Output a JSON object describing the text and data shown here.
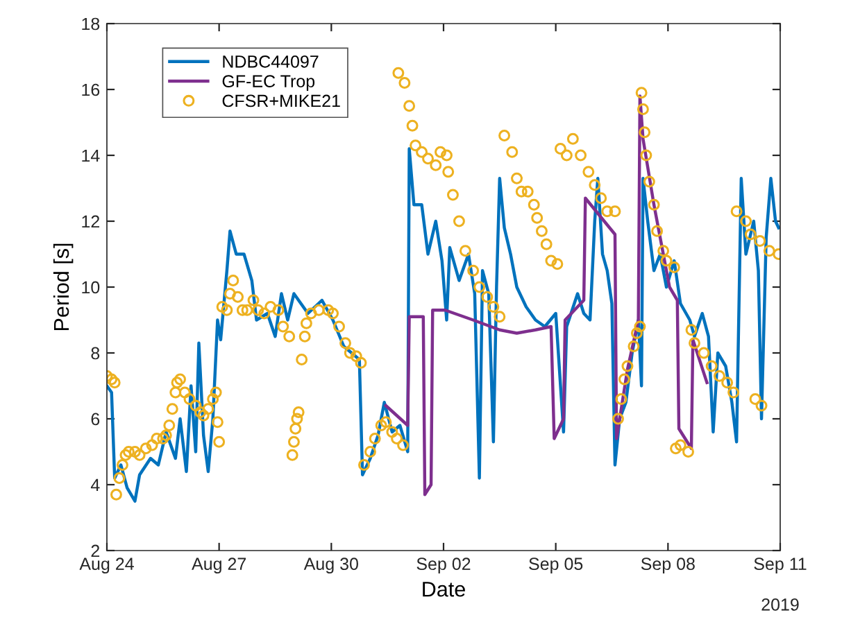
{
  "chart_data": {
    "type": "line",
    "xlabel": "Date",
    "ylabel": "Period [s]",
    "annotations": [
      "2019"
    ],
    "xlim": [
      "2019-08-24",
      "2019-09-11"
    ],
    "xticks": [
      {
        "value": "2019-08-24",
        "label": "Aug 24"
      },
      {
        "value": "2019-08-27",
        "label": "Aug 27"
      },
      {
        "value": "2019-08-30",
        "label": "Aug 30"
      },
      {
        "value": "2019-09-02",
        "label": "Sep 02"
      },
      {
        "value": "2019-09-05",
        "label": "Sep 05"
      },
      {
        "value": "2019-09-08",
        "label": "Sep 08"
      },
      {
        "value": "2019-09-11",
        "label": "Sep 11"
      }
    ],
    "ylim": [
      2,
      18
    ],
    "yticks": [
      2,
      4,
      6,
      8,
      10,
      12,
      14,
      16,
      18
    ],
    "grid": false,
    "legend": "top left",
    "series": [
      {
        "name": "NDBC44097",
        "color": "#0072bd",
        "line_style": "solid",
        "marker": "none",
        "x": [
          "2019-08-24T00:00",
          "2019-08-24T03:00",
          "2019-08-24T05:00",
          "2019-08-24T09:00",
          "2019-08-24T13:00",
          "2019-08-24T18:00",
          "2019-08-24T21:00",
          "2019-08-25T04:00",
          "2019-08-25T09:00",
          "2019-08-25T14:00",
          "2019-08-25T20:00",
          "2019-08-25T23:00",
          "2019-08-26T03:00",
          "2019-08-26T06:00",
          "2019-08-26T09:00",
          "2019-08-26T11:00",
          "2019-08-26T14:00",
          "2019-08-26T17:00",
          "2019-08-26T20:00",
          "2019-08-26T23:00",
          "2019-08-27T01:00",
          "2019-08-27T05:00",
          "2019-08-27T07:00",
          "2019-08-27T11:00",
          "2019-08-27T16:00",
          "2019-08-27T21:00",
          "2019-08-28T00:00",
          "2019-08-28T07:00",
          "2019-08-28T12:00",
          "2019-08-28T16:00",
          "2019-08-28T20:00",
          "2019-08-29T00:00",
          "2019-08-29T09:00",
          "2019-08-29T18:00",
          "2019-08-30T01:00",
          "2019-08-30T08:00",
          "2019-08-30T13:00",
          "2019-08-30T18:00",
          "2019-08-30T20:00",
          "2019-08-31T01:00",
          "2019-08-31T06:00",
          "2019-08-31T10:00",
          "2019-08-31T15:00",
          "2019-08-31T20:00",
          "2019-09-01T01:00",
          "2019-09-01T02:00",
          "2019-09-01T05:00",
          "2019-09-01T10:00",
          "2019-09-01T14:00",
          "2019-09-01T19:00",
          "2019-09-01T23:00",
          "2019-09-02T02:00",
          "2019-09-02T04:00",
          "2019-09-02T10:00",
          "2019-09-02T16:00",
          "2019-09-02T20:00",
          "2019-09-02T23:00",
          "2019-09-03T01:00",
          "2019-09-03T05:00",
          "2019-09-03T08:00",
          "2019-09-03T10:00",
          "2019-09-03T12:00",
          "2019-09-03T15:00",
          "2019-09-03T19:00",
          "2019-09-03T23:00",
          "2019-09-04T05:00",
          "2019-09-04T11:00",
          "2019-09-04T17:00",
          "2019-09-05T00:00",
          "2019-09-05T05:00",
          "2019-09-05T07:00",
          "2019-09-05T14:00",
          "2019-09-05T18:00",
          "2019-09-05T22:00",
          "2019-09-06T01:00",
          "2019-09-06T03:00",
          "2019-09-06T06:00",
          "2019-09-06T09:00",
          "2019-09-06T12:00",
          "2019-09-06T14:00",
          "2019-09-06T17:00",
          "2019-09-06T21:00",
          "2019-09-07T01:00",
          "2019-09-07T05:00",
          "2019-09-07T07:00",
          "2019-09-07T08:00",
          "2019-09-07T11:00",
          "2019-09-07T15:00",
          "2019-09-07T19:00",
          "2019-09-07T23:00",
          "2019-09-08T04:00",
          "2019-09-08T08:00",
          "2019-09-08T14:00",
          "2019-09-08T17:00",
          "2019-09-08T22:00",
          "2019-09-09T02:00",
          "2019-09-09T05:00",
          "2019-09-09T08:00",
          "2019-09-09T13:00",
          "2019-09-09T17:00",
          "2019-09-09T20:00",
          "2019-09-09T23:00",
          "2019-09-10T02:00",
          "2019-09-10T07:00",
          "2019-09-10T10:00",
          "2019-09-10T12:00",
          "2019-09-10T15:00",
          "2019-09-10T18:00",
          "2019-09-10T21:00",
          "2019-09-10T23:00"
        ],
        "values": [
          7.0,
          6.8,
          4.2,
          4.6,
          3.9,
          3.5,
          4.3,
          4.8,
          4.6,
          5.6,
          4.8,
          6.0,
          4.4,
          7.0,
          5.0,
          8.3,
          5.5,
          4.4,
          6.0,
          9.0,
          8.4,
          10.5,
          11.7,
          11.0,
          11.0,
          10.2,
          9.0,
          9.2,
          8.5,
          9.8,
          9.0,
          9.8,
          9.2,
          9.6,
          9.0,
          8.2,
          8.0,
          7.8,
          4.3,
          4.8,
          5.5,
          6.5,
          5.6,
          5.8,
          5.0,
          14.2,
          12.5,
          12.5,
          11.0,
          12.0,
          10.8,
          9.0,
          11.2,
          10.2,
          11.0,
          9.8,
          4.2,
          10.5,
          9.8,
          5.3,
          10.0,
          13.3,
          11.8,
          11.0,
          10.0,
          9.4,
          9.0,
          8.8,
          9.2,
          5.6,
          8.8,
          9.8,
          9.2,
          9.0,
          12.0,
          13.3,
          11.0,
          10.5,
          9.5,
          4.6,
          6.0,
          6.5,
          8.0,
          9.0,
          7.0,
          13.3,
          12.0,
          10.5,
          11.0,
          10.0,
          10.8,
          9.5,
          9.0,
          8.5,
          9.2,
          8.5,
          5.6,
          8.0,
          7.6,
          6.5,
          5.3,
          13.3,
          11.0,
          12.0,
          10.5,
          6.0,
          11.5,
          13.3,
          12.0,
          11.8
        ]
      },
      {
        "name": "GF-EC Trop",
        "color": "#7e2f8e",
        "line_style": "solid",
        "marker": "none",
        "x": [
          "2019-08-31T11:00",
          "2019-08-31T18:00",
          "2019-09-01T01:00",
          "2019-09-01T02:00",
          "2019-09-01T11:00",
          "2019-09-01T12:00",
          "2019-09-01T16:00",
          "2019-09-01T17:00",
          "2019-09-02T01:00",
          "2019-09-02T19:00",
          "2019-09-03T12:00",
          "2019-09-03T23:00",
          "2019-09-04T11:00",
          "2019-09-04T21:00",
          "2019-09-04T23:00",
          "2019-09-05T05:00",
          "2019-09-05T06:00",
          "2019-09-05T18:00",
          "2019-09-05T19:00",
          "2019-09-06T14:00",
          "2019-09-06T15:00",
          "2019-09-06T22:00",
          "2019-09-07T05:00",
          "2019-09-07T06:00",
          "2019-09-07T08:00",
          "2019-09-07T15:00",
          "2019-09-07T21:00",
          "2019-09-08T01:00",
          "2019-09-08T06:00",
          "2019-09-08T07:00",
          "2019-09-08T15:00",
          "2019-09-08T16:00",
          "2019-09-09T01:00"
        ],
        "values": [
          6.4,
          6.1,
          5.8,
          9.1,
          9.1,
          3.7,
          4.0,
          9.3,
          9.3,
          9.0,
          8.7,
          8.6,
          8.7,
          8.8,
          5.4,
          6.0,
          9.0,
          9.6,
          12.7,
          11.6,
          5.4,
          7.5,
          9.0,
          15.8,
          14.5,
          12.5,
          11.0,
          10.0,
          9.6,
          5.7,
          5.1,
          8.4,
          7.1
        ]
      },
      {
        "name": "CFSR+MIKE21",
        "type": "scatter",
        "color": "#edb120",
        "marker": "circle",
        "x": [
          "2019-08-24T00:00",
          "2019-08-24T03:00",
          "2019-08-24T05:00",
          "2019-08-24T06:00",
          "2019-08-24T08:00",
          "2019-08-24T10:00",
          "2019-08-24T12:00",
          "2019-08-24T14:00",
          "2019-08-24T18:00",
          "2019-08-24T21:00",
          "2019-08-25T01:00",
          "2019-08-25T05:00",
          "2019-08-25T08:00",
          "2019-08-25T12:00",
          "2019-08-25T14:00",
          "2019-08-25T16:00",
          "2019-08-25T18:00",
          "2019-08-25T20:00",
          "2019-08-25T21:00",
          "2019-08-25T23:00",
          "2019-08-26T02:00",
          "2019-08-26T05:00",
          "2019-08-26T09:00",
          "2019-08-26T12:00",
          "2019-08-26T14:00",
          "2019-08-26T17:00",
          "2019-08-26T20:00",
          "2019-08-26T22:00",
          "2019-08-26T23:00",
          "2019-08-27T00:00",
          "2019-08-27T02:00",
          "2019-08-27T05:00",
          "2019-08-27T07:00",
          "2019-08-27T09:00",
          "2019-08-27T12:00",
          "2019-08-27T15:00",
          "2019-08-27T18:00",
          "2019-08-27T22:00",
          "2019-08-28T01:00",
          "2019-08-28T05:00",
          "2019-08-28T09:00",
          "2019-08-28T14:00",
          "2019-08-28T17:00",
          "2019-08-28T21:00",
          "2019-08-28T23:00",
          "2019-08-29T00:00",
          "2019-08-29T01:00",
          "2019-08-29T02:00",
          "2019-08-29T03:00",
          "2019-08-29T05:00",
          "2019-08-29T07:00",
          "2019-08-29T08:00",
          "2019-08-29T11:00",
          "2019-08-29T16:00",
          "2019-08-29T22:00",
          "2019-08-30T01:00",
          "2019-08-30T05:00",
          "2019-08-30T09:00",
          "2019-08-30T12:00",
          "2019-08-30T16:00",
          "2019-08-30T19:00",
          "2019-08-30T21:00",
          "2019-08-31T01:00",
          "2019-08-31T04:00",
          "2019-08-31T08:00",
          "2019-08-31T11:00",
          "2019-08-31T15:00",
          "2019-08-31T18:00",
          "2019-08-31T22:00",
          "2019-08-31T19:00",
          "2019-08-31T23:00",
          "2019-09-01T02:00",
          "2019-09-01T04:00",
          "2019-09-01T06:00",
          "2019-09-01T10:00",
          "2019-09-01T14:00",
          "2019-09-01T19:00",
          "2019-09-01T22:00",
          "2019-09-02T02:00",
          "2019-09-02T03:00",
          "2019-09-02T06:00",
          "2019-09-02T10:00",
          "2019-09-02T14:00",
          "2019-09-02T19:00",
          "2019-09-02T23:00",
          "2019-09-03T04:00",
          "2019-09-03T08:00",
          "2019-09-03T12:00",
          "2019-09-03T15:00",
          "2019-09-03T20:00",
          "2019-09-03T23:00",
          "2019-09-04T02:00",
          "2019-09-04T06:00",
          "2019-09-04T10:00",
          "2019-09-04T12:00",
          "2019-09-04T15:00",
          "2019-09-04T18:00",
          "2019-09-04T21:00",
          "2019-09-05T01:00",
          "2019-09-05T03:00",
          "2019-09-05T07:00",
          "2019-09-05T11:00",
          "2019-09-05T16:00",
          "2019-09-05T21:00",
          "2019-09-06T01:00",
          "2019-09-06T05:00",
          "2019-09-06T09:00",
          "2019-09-06T14:00",
          "2019-09-06T16:00",
          "2019-09-06T18:00",
          "2019-09-06T20:00",
          "2019-09-06T22:00",
          "2019-09-07T02:00",
          "2019-09-07T04:00",
          "2019-09-07T06:00",
          "2019-09-07T07:00",
          "2019-09-07T08:00",
          "2019-09-07T09:00",
          "2019-09-07T10:00",
          "2019-09-07T12:00",
          "2019-09-07T15:00",
          "2019-09-07T17:00",
          "2019-09-07T21:00",
          "2019-09-07T23:00",
          "2019-09-08T04:00",
          "2019-09-08T05:00",
          "2019-09-08T08:00",
          "2019-09-08T13:00",
          "2019-09-08T15:00",
          "2019-09-08T17:00",
          "2019-09-08T23:00",
          "2019-09-09T04:00",
          "2019-09-09T09:00",
          "2019-09-09T14:00",
          "2019-09-09T18:00",
          "2019-09-09T20:00",
          "2019-09-10T02:00",
          "2019-09-10T05:00",
          "2019-09-10T11:00",
          "2019-09-10T17:00",
          "2019-09-10T23:00",
          "2019-09-10T08:00",
          "2019-09-10T12:00"
        ],
        "values": [
          7.3,
          7.2,
          7.1,
          3.7,
          4.2,
          4.6,
          4.9,
          5.0,
          5.0,
          4.9,
          5.1,
          5.2,
          5.4,
          5.4,
          5.5,
          5.8,
          6.3,
          6.8,
          7.1,
          7.2,
          6.8,
          6.6,
          6.4,
          6.2,
          6.1,
          6.3,
          6.6,
          6.8,
          5.9,
          5.3,
          9.4,
          9.3,
          9.8,
          10.2,
          9.7,
          9.3,
          9.3,
          9.6,
          9.3,
          9.2,
          9.4,
          9.3,
          8.8,
          8.5,
          4.9,
          5.3,
          5.7,
          6.0,
          6.2,
          7.8,
          8.5,
          8.9,
          9.2,
          9.3,
          9.3,
          9.2,
          8.8,
          8.3,
          8.0,
          7.9,
          7.7,
          4.6,
          5.0,
          5.4,
          5.8,
          5.9,
          5.6,
          5.4,
          5.2,
          16.5,
          16.2,
          15.5,
          14.9,
          14.3,
          14.1,
          13.9,
          13.7,
          14.1,
          14.0,
          13.5,
          12.8,
          12.0,
          11.1,
          10.5,
          10.0,
          9.7,
          9.4,
          9.1,
          14.6,
          14.1,
          13.3,
          12.9,
          12.9,
          12.5,
          12.1,
          11.7,
          11.3,
          10.8,
          10.7,
          14.2,
          14.0,
          14.5,
          14.0,
          13.5,
          13.1,
          12.7,
          12.3,
          12.3,
          6.0,
          6.6,
          7.2,
          7.6,
          8.2,
          8.6,
          8.8,
          15.9,
          15.4,
          14.7,
          14.0,
          13.2,
          12.5,
          11.7,
          11.1,
          10.8,
          10.6,
          5.1,
          5.2,
          5.0,
          8.7,
          8.3,
          8.0,
          7.6,
          7.3,
          7.1,
          6.8,
          12.3,
          12.0,
          11.6,
          11.4,
          11.1,
          11.0,
          6.6,
          6.4
        ]
      }
    ]
  }
}
